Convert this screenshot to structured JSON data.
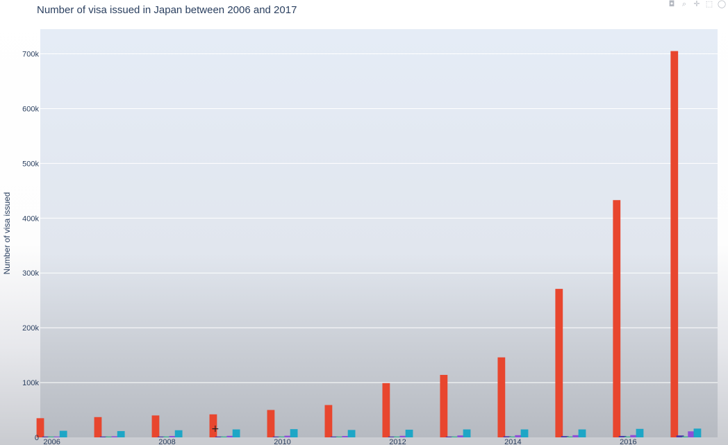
{
  "window": {
    "title": ""
  },
  "modebar": {
    "icons": [
      "camera-icon",
      "zoom-icon",
      "pan-icon",
      "box-select-icon",
      "lasso-icon"
    ],
    "glyphs": [
      "◘",
      "⌕",
      "✛",
      "⬚",
      "◯"
    ]
  },
  "chart_data": {
    "type": "bar",
    "title": "Number of visa issued in Japan between 2006 and 2017",
    "xlabel": "",
    "ylabel": "Number of visa issued",
    "x": [
      2006,
      2007,
      2008,
      2009,
      2010,
      2011,
      2012,
      2013,
      2014,
      2015,
      2016,
      2017
    ],
    "xticks": [
      2006,
      2008,
      2010,
      2012,
      2014,
      2016
    ],
    "xlim": [
      2005.8,
      2017.55
    ],
    "ylim": [
      0,
      745000
    ],
    "yticks": [
      0,
      100000,
      200000,
      300000,
      400000,
      500000,
      600000,
      700000
    ],
    "ytick_labels": [
      "0",
      "100k",
      "200k",
      "300k",
      "400k",
      "500k",
      "600k",
      "700k"
    ],
    "grid": true,
    "legend": "none",
    "series": [
      {
        "color": "#e8462e",
        "offset": -0.2,
        "values": [
          35000,
          37000,
          40000,
          42000,
          50000,
          59000,
          99000,
          114000,
          146000,
          271000,
          433000,
          705000
        ]
      },
      {
        "color": "#4a3aa8",
        "offset": -0.1,
        "values": [
          800,
          800,
          900,
          900,
          1000,
          800,
          1100,
          1500,
          2000,
          2300,
          2600,
          3500
        ]
      },
      {
        "color": "#2fb08a",
        "offset": 0.0,
        "values": [
          400,
          400,
          400,
          400,
          400,
          400,
          500,
          500,
          600,
          700,
          800,
          900
        ]
      },
      {
        "color": "#8e4fd8",
        "offset": 0.1,
        "values": [
          1500,
          2000,
          2500,
          2800,
          3000,
          2500,
          2800,
          3500,
          4000,
          4000,
          4200,
          11000
        ]
      },
      {
        "color": "#1ea6c6",
        "offset": 0.2,
        "values": [
          12000,
          11500,
          13000,
          14500,
          15000,
          13500,
          14000,
          14500,
          14500,
          14500,
          15500,
          16000
        ]
      }
    ]
  }
}
